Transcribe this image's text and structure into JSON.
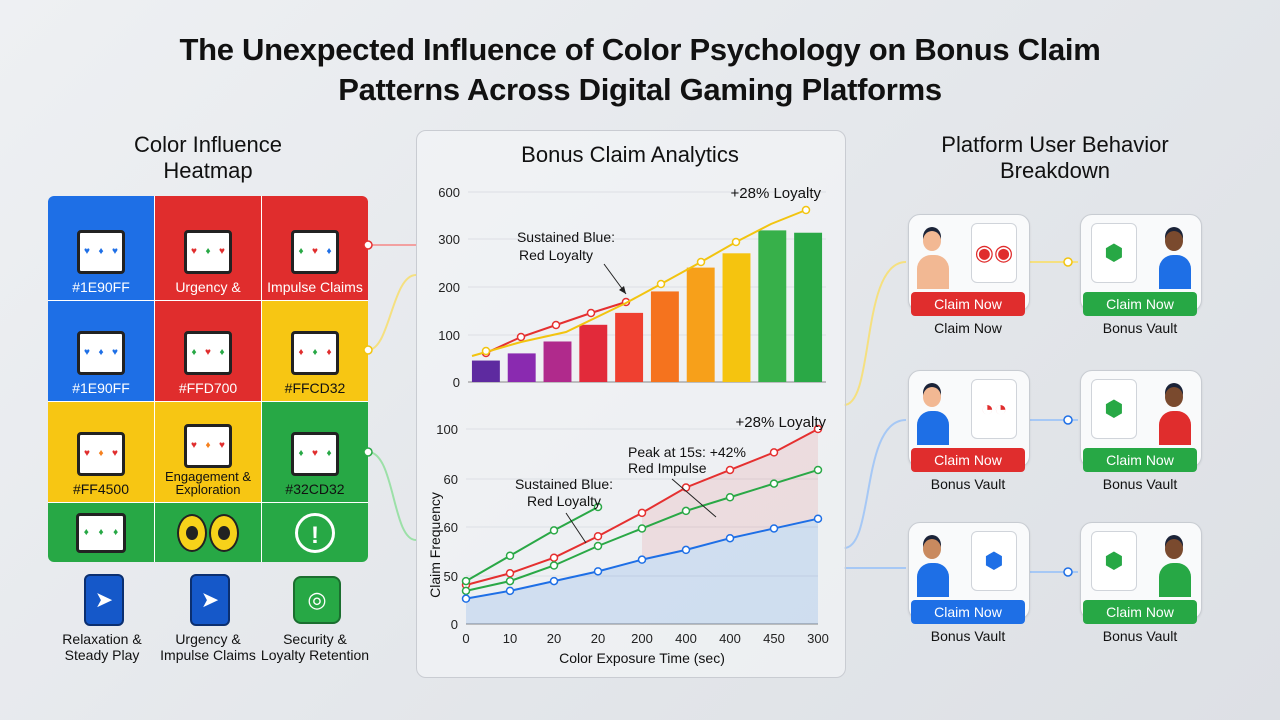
{
  "title_line1": "The Unexpected Influence of Color Psychology on Bonus Claim",
  "title_line2": "Patterns Across Digital Gaming Platforms",
  "heatmap": {
    "title_line1": "Color Influence",
    "title_line2": "Heatmap",
    "cells": [
      {
        "color": "blue",
        "label": "#1E90FF"
      },
      {
        "color": "red",
        "label": "Urgency &"
      },
      {
        "color": "red",
        "label": "Impulse Claims"
      },
      {
        "color": "blue",
        "label": "#1E90FF"
      },
      {
        "color": "red",
        "label": "#FFD700"
      },
      {
        "color": "yellow",
        "label": "#FFCD32"
      },
      {
        "color": "yellow",
        "label": "#FF4500"
      },
      {
        "color": "yellow",
        "label": "Engagement & Exploration"
      },
      {
        "color": "green",
        "label": "#32CD32"
      }
    ],
    "bottom": [
      {
        "label_line1": "Relaxation &",
        "label_line2": "Steady Play"
      },
      {
        "label_line1": "Urgency &",
        "label_line2": "Impulse Claims"
      },
      {
        "label_line1": "Security &",
        "label_line2": "Loyalty Retention"
      }
    ]
  },
  "analytics": {
    "title": "Bonus Claim Analytics",
    "colors": {
      "purple": "#6a2ca6",
      "red": "#e53030",
      "green": "#2aa846",
      "blue": "#1e6fe6",
      "yellow": "#f2c40f",
      "orange": "#f5801e"
    }
  },
  "chart_data": [
    {
      "type": "bar",
      "title": "",
      "ylim": [
        0,
        600
      ],
      "y_ticks": [
        "0",
        "100",
        "200",
        "300",
        "600"
      ],
      "values": [
        45,
        60,
        85,
        120,
        145,
        190,
        240,
        270,
        355,
        340
      ],
      "bar_colors": [
        "#5e2aa0",
        "#8a2ab0",
        "#b02a8c",
        "#e22a3a",
        "#ef4030",
        "#f5731e",
        "#f7a01a",
        "#f5c40f",
        "#37b04a",
        "#2aa846"
      ],
      "annotations": [
        "+28% Loyalty",
        "Sustained Blue:",
        "Red Loyalty"
      ]
    },
    {
      "type": "line",
      "xlabel": "Color Exposure Time (sec)",
      "ylabel": "Claim Frequency",
      "x_ticks": [
        "0",
        "10",
        "20",
        "20",
        "200",
        "400",
        "400",
        "450",
        "300"
      ],
      "y_ticks": [
        "0",
        "50",
        "60",
        "60",
        "100"
      ],
      "annotations": [
        "+28% Loyalty",
        "Peak at 15s: +42%",
        "Red Impulse",
        "Sustained Blue:",
        "Red Loyalty"
      ],
      "series": [
        {
          "name": "Red",
          "color": "#e53030",
          "values": [
            20,
            26,
            34,
            45,
            57,
            70,
            79,
            88,
            100
          ]
        },
        {
          "name": "Green",
          "color": "#2aa846",
          "values": [
            17,
            22,
            30,
            40,
            49,
            58,
            65,
            72,
            79
          ]
        },
        {
          "name": "Blue",
          "color": "#1e6fe6",
          "values": [
            13,
            17,
            22,
            27,
            33,
            38,
            44,
            49,
            54
          ]
        }
      ],
      "extra_green_segment": [
        22,
        35,
        48,
        60
      ]
    }
  ],
  "platform": {
    "title_line1": "Platform User Behavior",
    "title_line2": "Breakdown",
    "tiles": [
      {
        "button": "Claim Now",
        "button_color": "red",
        "label": "Claim Now"
      },
      {
        "button": "Claim Now",
        "button_color": "green",
        "label": "Bonus Vault"
      },
      {
        "button": "Claim Now",
        "button_color": "red",
        "label": "Bonus Vault"
      },
      {
        "button": "Claim Now",
        "button_color": "green",
        "label": "Bonus Vault"
      },
      {
        "button": "Claim Now",
        "button_color": "blue",
        "label": "Bonus Vault"
      },
      {
        "button": "Claim Now",
        "button_color": "green",
        "label": "Bonus Vault"
      }
    ]
  }
}
